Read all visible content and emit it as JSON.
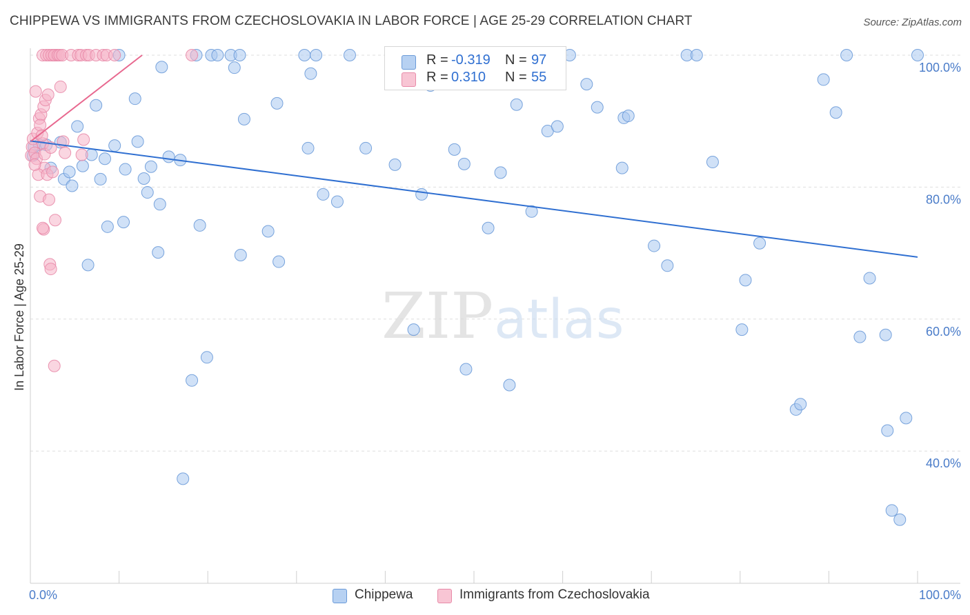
{
  "title": "CHIPPEWA VS IMMIGRANTS FROM CZECHOSLOVAKIA IN LABOR FORCE | AGE 25-29 CORRELATION CHART",
  "source": "Source: ZipAtlas.com",
  "watermark": {
    "zip": "ZIP",
    "atlas": "atlas"
  },
  "colors": {
    "blue_fill": "#a9c8f0",
    "blue_stroke": "#6a9ad8",
    "blue_line": "#2f6fd1",
    "pink_fill": "#f5b5c8",
    "pink_stroke": "#e88aa8",
    "pink_line": "#e8688f",
    "tick_text": "#4a7cc9",
    "grid": "#dedede"
  },
  "stats": [
    {
      "r_label": "R =",
      "r_value": "-0.319",
      "n_label": "N =",
      "n_value": "97",
      "series": "Chippewa"
    },
    {
      "r_label": "R =",
      "r_value": "0.310",
      "n_label": "N =",
      "n_value": "55",
      "series": "Immigrants from Czechoslovakia"
    }
  ],
  "legend": [
    "Chippewa",
    "Immigrants from Czechoslovakia"
  ],
  "chart_data": {
    "type": "scatter",
    "title": "CHIPPEWA VS IMMIGRANTS FROM CZECHOSLOVAKIA IN LABOR FORCE | AGE 25-29 CORRELATION CHART",
    "xlabel": "",
    "ylabel": "In Labor Force | Age 25-29",
    "xlim": [
      0,
      100
    ],
    "ylim": [
      20,
      102
    ],
    "x_tick_labels": [
      {
        "value": 0,
        "label": "0.0%"
      },
      {
        "value": 100,
        "label": "100.0%"
      }
    ],
    "y_tick_labels": [
      {
        "value": 100,
        "label": "100.0%"
      },
      {
        "value": 80,
        "label": "80.0%"
      },
      {
        "value": 60,
        "label": "60.0%"
      },
      {
        "value": 40,
        "label": "40.0%"
      }
    ],
    "series": [
      {
        "name": "Chippewa",
        "r": -0.319,
        "n": 97,
        "trend": [
          [
            0,
            87.0
          ],
          [
            100,
            69.4
          ]
        ],
        "points": [
          [
            0.3,
            84.8
          ],
          [
            1.0,
            86.4
          ],
          [
            1.8,
            86.4
          ],
          [
            2.3,
            82.9
          ],
          [
            3.4,
            86.8
          ],
          [
            3.8,
            81.2
          ],
          [
            4.7,
            80.2
          ],
          [
            4.4,
            82.3
          ],
          [
            5.3,
            89.2
          ],
          [
            5.9,
            83.2
          ],
          [
            6.5,
            68.2
          ],
          [
            6.9,
            84.9
          ],
          [
            7.4,
            92.4
          ],
          [
            7.9,
            81.2
          ],
          [
            8.4,
            84.3
          ],
          [
            8.7,
            74.0
          ],
          [
            9.5,
            86.3
          ],
          [
            10.0,
            100
          ],
          [
            10.5,
            74.7
          ],
          [
            10.7,
            82.7
          ],
          [
            11.8,
            93.4
          ],
          [
            12.1,
            86.9
          ],
          [
            12.8,
            81.3
          ],
          [
            13.2,
            79.2
          ],
          [
            13.6,
            83.1
          ],
          [
            14.4,
            70.1
          ],
          [
            14.6,
            77.4
          ],
          [
            14.8,
            98.2
          ],
          [
            15.6,
            84.6
          ],
          [
            16.9,
            84.1
          ],
          [
            17.2,
            35.8
          ],
          [
            18.2,
            50.7
          ],
          [
            18.7,
            100
          ],
          [
            19.1,
            74.2
          ],
          [
            19.9,
            54.2
          ],
          [
            20.4,
            100
          ],
          [
            21.1,
            100
          ],
          [
            22.6,
            100
          ],
          [
            23.0,
            98.1
          ],
          [
            23.6,
            100
          ],
          [
            23.7,
            69.7
          ],
          [
            24.1,
            90.3
          ],
          [
            26.8,
            73.3
          ],
          [
            27.8,
            92.7
          ],
          [
            28.0,
            68.7
          ],
          [
            30.9,
            100
          ],
          [
            31.3,
            85.9
          ],
          [
            31.6,
            97.2
          ],
          [
            32.2,
            100
          ],
          [
            33.0,
            78.9
          ],
          [
            34.6,
            77.8
          ],
          [
            36.0,
            100
          ],
          [
            37.8,
            85.9
          ],
          [
            41.1,
            83.4
          ],
          [
            43.2,
            58.4
          ],
          [
            44.1,
            78.9
          ],
          [
            45.1,
            95.4
          ],
          [
            46.1,
            100
          ],
          [
            47.8,
            85.7
          ],
          [
            48.9,
            83.5
          ],
          [
            49.1,
            52.4
          ],
          [
            50.1,
            100
          ],
          [
            51.6,
            73.8
          ],
          [
            53.0,
            82.2
          ],
          [
            54.0,
            50.0
          ],
          [
            54.8,
            92.5
          ],
          [
            56.5,
            76.3
          ],
          [
            58.3,
            88.5
          ],
          [
            59.4,
            89.2
          ],
          [
            60.8,
            100
          ],
          [
            62.7,
            95.6
          ],
          [
            63.9,
            92.1
          ],
          [
            66.7,
            82.9
          ],
          [
            66.9,
            90.5
          ],
          [
            67.4,
            90.8
          ],
          [
            70.3,
            71.1
          ],
          [
            71.8,
            68.1
          ],
          [
            74.0,
            100
          ],
          [
            75.1,
            100
          ],
          [
            76.9,
            83.8
          ],
          [
            80.2,
            58.4
          ],
          [
            80.6,
            65.9
          ],
          [
            82.2,
            71.5
          ],
          [
            86.3,
            46.3
          ],
          [
            86.8,
            47.1
          ],
          [
            89.4,
            96.3
          ],
          [
            90.8,
            91.3
          ],
          [
            92.0,
            100
          ],
          [
            93.5,
            57.3
          ],
          [
            94.6,
            66.2
          ],
          [
            96.4,
            57.6
          ],
          [
            96.6,
            43.1
          ],
          [
            97.1,
            31.0
          ],
          [
            98.0,
            29.6
          ],
          [
            98.7,
            45.0
          ],
          [
            100,
            100
          ],
          [
            0.4,
            86.1
          ]
        ]
      },
      {
        "name": "Immigrants from Czechoslovakia",
        "r": 0.31,
        "n": 55,
        "trend": [
          [
            0.1,
            87.0
          ],
          [
            12.6,
            100
          ]
        ],
        "points": [
          [
            0.1,
            84.8
          ],
          [
            0.2,
            86.1
          ],
          [
            0.3,
            87.3
          ],
          [
            0.5,
            85.2
          ],
          [
            0.7,
            84.3
          ],
          [
            0.8,
            88.2
          ],
          [
            1.0,
            90.4
          ],
          [
            1.2,
            91.0
          ],
          [
            1.4,
            86.6
          ],
          [
            1.5,
            92.2
          ],
          [
            1.6,
            85.0
          ],
          [
            1.7,
            93.2
          ],
          [
            0.6,
            94.5
          ],
          [
            1.1,
            89.4
          ],
          [
            1.3,
            87.8
          ],
          [
            2.0,
            94.0
          ],
          [
            2.3,
            86.0
          ],
          [
            2.6,
            100
          ],
          [
            2.9,
            100
          ],
          [
            1.4,
            100
          ],
          [
            1.8,
            100
          ],
          [
            2.1,
            100
          ],
          [
            2.4,
            100
          ],
          [
            2.7,
            100
          ],
          [
            3.1,
            100
          ],
          [
            3.3,
            100
          ],
          [
            3.6,
            100
          ],
          [
            4.6,
            100
          ],
          [
            5.4,
            100
          ],
          [
            5.7,
            100
          ],
          [
            6.3,
            100
          ],
          [
            6.6,
            100
          ],
          [
            7.4,
            100
          ],
          [
            8.2,
            100
          ],
          [
            8.6,
            100
          ],
          [
            9.5,
            100
          ],
          [
            18.2,
            100
          ],
          [
            3.4,
            95.2
          ],
          [
            3.7,
            86.9
          ],
          [
            3.9,
            85.2
          ],
          [
            5.8,
            84.9
          ],
          [
            6.0,
            87.2
          ],
          [
            1.6,
            82.9
          ],
          [
            0.9,
            81.9
          ],
          [
            1.9,
            81.9
          ],
          [
            2.5,
            82.3
          ],
          [
            1.1,
            78.6
          ],
          [
            2.1,
            78.1
          ],
          [
            2.8,
            75.0
          ],
          [
            1.5,
            73.6
          ],
          [
            1.4,
            73.8
          ],
          [
            2.2,
            68.3
          ],
          [
            2.3,
            67.6
          ],
          [
            2.7,
            52.9
          ],
          [
            0.5,
            83.4
          ]
        ]
      }
    ]
  }
}
